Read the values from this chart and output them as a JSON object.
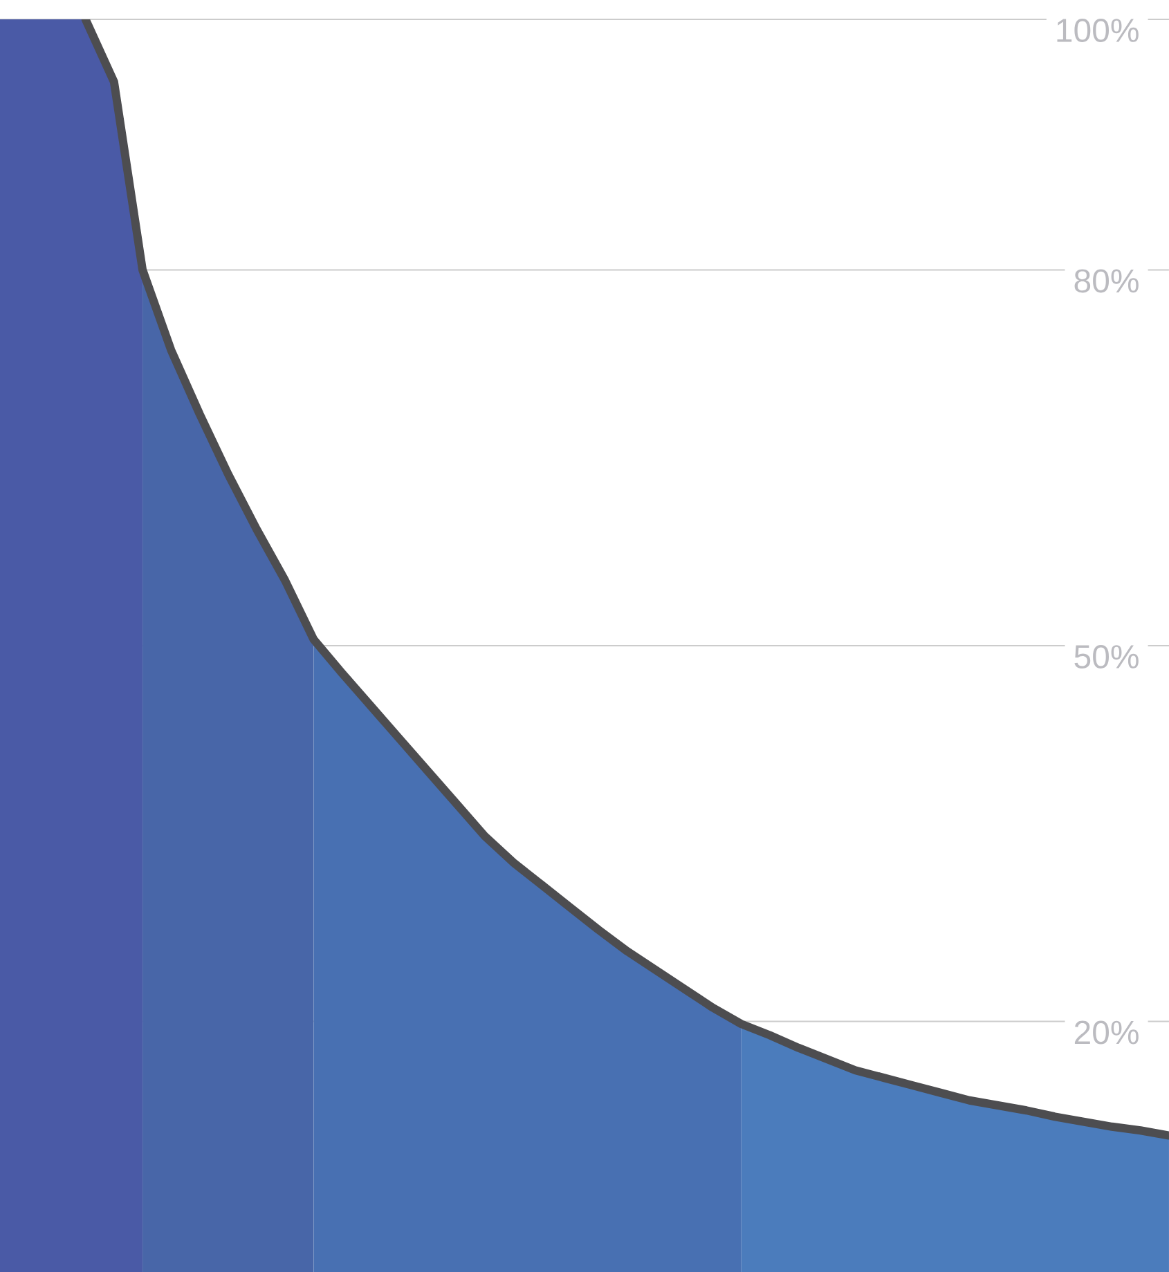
{
  "chart_data": {
    "type": "area",
    "ylim": [
      0,
      100
    ],
    "yticks": [
      {
        "value": 20,
        "label": "20%"
      },
      {
        "value": 50,
        "label": "50%"
      },
      {
        "value": 80,
        "label": "80%"
      },
      {
        "value": 100,
        "label": "100%"
      }
    ],
    "grid": "y",
    "categories": [
      null,
      null,
      null,
      null,
      null,
      null,
      null,
      null,
      null,
      null,
      null,
      null,
      null,
      null,
      null,
      null,
      null,
      null,
      null,
      null,
      null,
      null,
      null,
      null,
      null,
      null,
      null,
      null,
      null,
      null,
      null,
      null,
      null,
      null,
      null,
      null,
      null,
      null,
      null,
      null,
      null,
      null
    ],
    "series": [
      {
        "type": "area",
        "color": "#4a5aa6",
        "values": [
          100,
          100,
          100,
          100,
          95,
          80,
          null,
          null,
          null,
          null,
          null,
          null,
          null,
          null,
          null,
          null,
          null,
          null,
          null,
          null,
          null,
          null,
          null,
          null,
          null,
          null,
          null,
          null,
          null,
          null,
          null,
          null,
          null,
          null,
          null,
          null,
          null,
          null,
          null,
          null,
          null,
          null
        ]
      },
      {
        "type": "area",
        "color": "#4866a8",
        "values": [
          null,
          null,
          null,
          null,
          null,
          80,
          73.6,
          68.5,
          63.7,
          59.3,
          55.2,
          50.5,
          null,
          null,
          null,
          null,
          null,
          null,
          null,
          null,
          null,
          null,
          null,
          null,
          null,
          null,
          null,
          null,
          null,
          null,
          null,
          null,
          null,
          null,
          null,
          null,
          null,
          null,
          null,
          null,
          null,
          null
        ]
      },
      {
        "type": "area",
        "color": "#4870b2",
        "values": [
          null,
          null,
          null,
          null,
          null,
          null,
          null,
          null,
          null,
          null,
          null,
          50.5,
          47.8,
          45.2,
          42.6,
          40.0,
          37.4,
          34.8,
          32.7,
          30.9,
          29.1,
          27.3,
          25.6,
          24.1,
          22.6,
          21.1,
          19.8,
          null,
          null,
          null,
          null,
          null,
          null,
          null,
          null,
          null,
          null,
          null,
          null,
          null,
          null,
          null
        ]
      },
      {
        "type": "area",
        "color": "#4b7cbc",
        "values": [
          null,
          null,
          null,
          null,
          null,
          null,
          null,
          null,
          null,
          null,
          null,
          null,
          null,
          null,
          null,
          null,
          null,
          null,
          null,
          null,
          null,
          null,
          null,
          null,
          null,
          null,
          19.8,
          18.9,
          17.9,
          17.0,
          16.1,
          15.5,
          14.9,
          14.3,
          13.7,
          13.3,
          12.9,
          12.4,
          12.0,
          11.6,
          11.3,
          10.9
        ]
      },
      {
        "type": "line",
        "color": "#4d4d50",
        "values": [
          null,
          null,
          null,
          100,
          95,
          80,
          73.6,
          68.5,
          63.7,
          59.3,
          55.2,
          50.5,
          47.8,
          45.2,
          42.6,
          40.0,
          37.4,
          34.8,
          32.7,
          30.9,
          29.1,
          27.3,
          25.6,
          24.1,
          22.6,
          21.1,
          19.8,
          18.9,
          17.9,
          17.0,
          16.1,
          15.5,
          14.9,
          14.3,
          13.7,
          13.3,
          12.9,
          12.4,
          12.0,
          11.6,
          11.3,
          10.9
        ]
      }
    ]
  }
}
